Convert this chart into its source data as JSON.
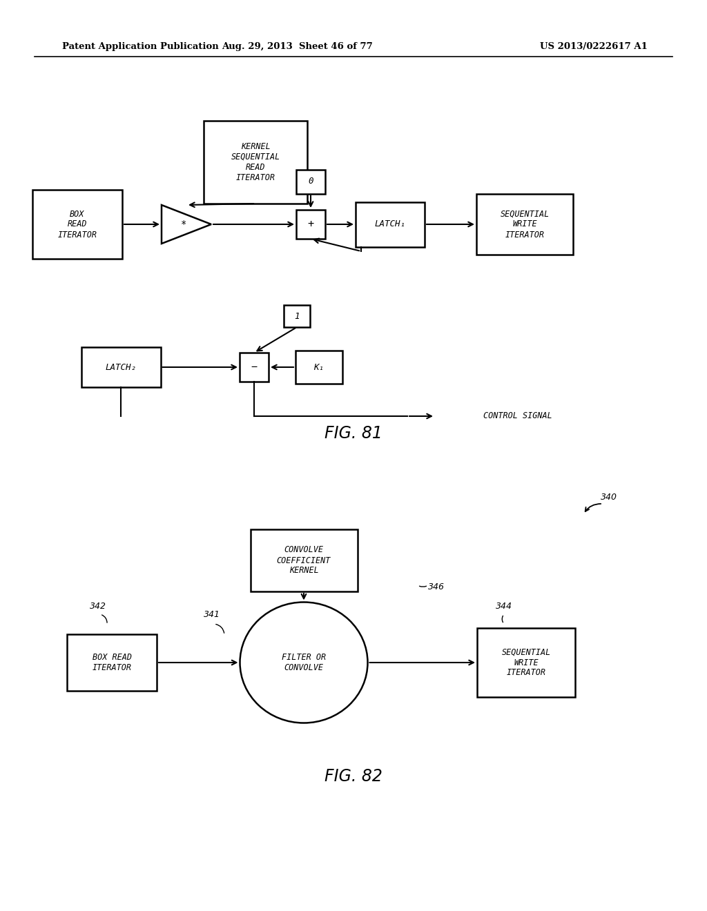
{
  "bg_color": "#ffffff",
  "header_left": "Patent Application Publication",
  "header_center": "Aug. 29, 2013  Sheet 46 of 77",
  "header_right": "US 2013/0222617 A1",
  "fig81_label": "FIG. 81",
  "fig82_label": "FIG. 82"
}
